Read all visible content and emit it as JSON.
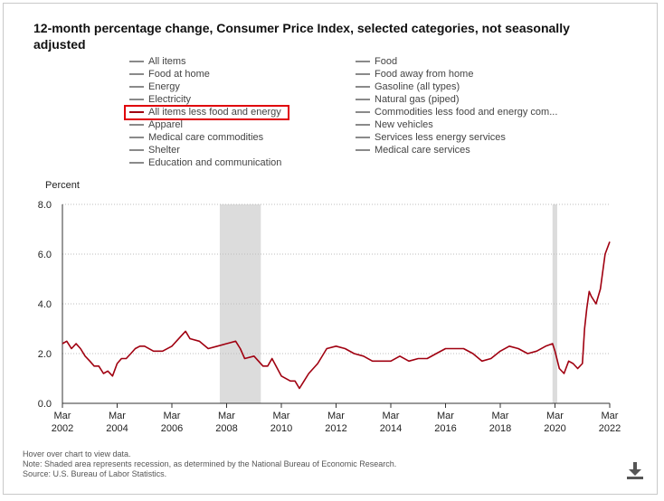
{
  "title": "12-month percentage change, Consumer Price Index, selected categories, not seasonally adjusted",
  "legend_left": [
    "All items",
    "Food at home",
    "Energy",
    "Electricity",
    "All items less food and energy",
    "Apparel",
    "Medical care commodities",
    "Shelter",
    "Education and communication"
  ],
  "legend_right": [
    "Food",
    "Food away from home",
    "Gasoline (all types)",
    "Natural gas (piped)",
    "Commodities less food and energy com...",
    "New vehicles",
    "Services less energy services",
    "Medical care services"
  ],
  "footnotes": [
    "Hover over chart to view data.",
    "Note: Shaded area represents recession, as determined by the National Bureau of Economic Research.",
    "Source: U.S. Bureau of Labor Statistics."
  ],
  "icons": {
    "download": "download-icon"
  },
  "colors": {
    "series": "#a00010",
    "recession": "#dcdcdc",
    "highlight_box": "#e0000a"
  },
  "chart_data": {
    "type": "line",
    "ylabel": "Percent",
    "ylim": [
      0,
      8
    ],
    "yticks": [
      "0.0",
      "2.0",
      "4.0",
      "6.0",
      "8.0"
    ],
    "xlim": [
      2002.17,
      2022.17
    ],
    "xtick_labels": [
      [
        "Mar",
        "2002"
      ],
      [
        "Mar",
        "2004"
      ],
      [
        "Mar",
        "2006"
      ],
      [
        "Mar",
        "2008"
      ],
      [
        "Mar",
        "2010"
      ],
      [
        "Mar",
        "2012"
      ],
      [
        "Mar",
        "2014"
      ],
      [
        "Mar",
        "2016"
      ],
      [
        "Mar",
        "2018"
      ],
      [
        "Mar",
        "2020"
      ],
      [
        "Mar",
        "2022"
      ]
    ],
    "grid": "horizontal dotted",
    "recessions": [
      [
        2007.92,
        2009.42
      ],
      [
        2020.08,
        2020.25
      ]
    ],
    "series": [
      {
        "name": "All items less food and energy",
        "x": [
          2002.17,
          2002.33,
          2002.5,
          2002.67,
          2002.83,
          2003.0,
          2003.17,
          2003.33,
          2003.5,
          2003.67,
          2003.83,
          2004.0,
          2004.17,
          2004.33,
          2004.5,
          2004.67,
          2004.83,
          2005.0,
          2005.17,
          2005.5,
          2005.83,
          2006.17,
          2006.5,
          2006.67,
          2006.83,
          2007.17,
          2007.5,
          2007.83,
          2008.17,
          2008.5,
          2008.67,
          2008.83,
          2009.17,
          2009.5,
          2009.67,
          2009.83,
          2010.17,
          2010.5,
          2010.67,
          2010.83,
          2011.0,
          2011.17,
          2011.5,
          2011.83,
          2012.17,
          2012.5,
          2012.83,
          2013.17,
          2013.5,
          2013.83,
          2014.17,
          2014.5,
          2014.83,
          2015.17,
          2015.5,
          2015.83,
          2016.17,
          2016.5,
          2016.83,
          2017.17,
          2017.5,
          2017.83,
          2018.17,
          2018.5,
          2018.83,
          2019.17,
          2019.5,
          2019.83,
          2020.08,
          2020.17,
          2020.33,
          2020.5,
          2020.67,
          2020.83,
          2021.0,
          2021.17,
          2021.25,
          2021.33,
          2021.42,
          2021.5,
          2021.67,
          2021.83,
          2022.0,
          2022.17
        ],
        "values": [
          2.4,
          2.5,
          2.2,
          2.4,
          2.2,
          1.9,
          1.7,
          1.5,
          1.5,
          1.2,
          1.3,
          1.1,
          1.6,
          1.8,
          1.8,
          2.0,
          2.2,
          2.3,
          2.3,
          2.1,
          2.1,
          2.3,
          2.7,
          2.9,
          2.6,
          2.5,
          2.2,
          2.3,
          2.4,
          2.5,
          2.2,
          1.8,
          1.9,
          1.5,
          1.5,
          1.8,
          1.1,
          0.9,
          0.9,
          0.6,
          0.9,
          1.2,
          1.6,
          2.2,
          2.3,
          2.2,
          2.0,
          1.9,
          1.7,
          1.7,
          1.7,
          1.9,
          1.7,
          1.8,
          1.8,
          2.0,
          2.2,
          2.2,
          2.2,
          2.0,
          1.7,
          1.8,
          2.1,
          2.3,
          2.2,
          2.0,
          2.1,
          2.3,
          2.4,
          2.1,
          1.4,
          1.2,
          1.7,
          1.6,
          1.4,
          1.6,
          3.0,
          3.8,
          4.5,
          4.3,
          4.0,
          4.6,
          6.0,
          6.5
        ]
      }
    ]
  }
}
